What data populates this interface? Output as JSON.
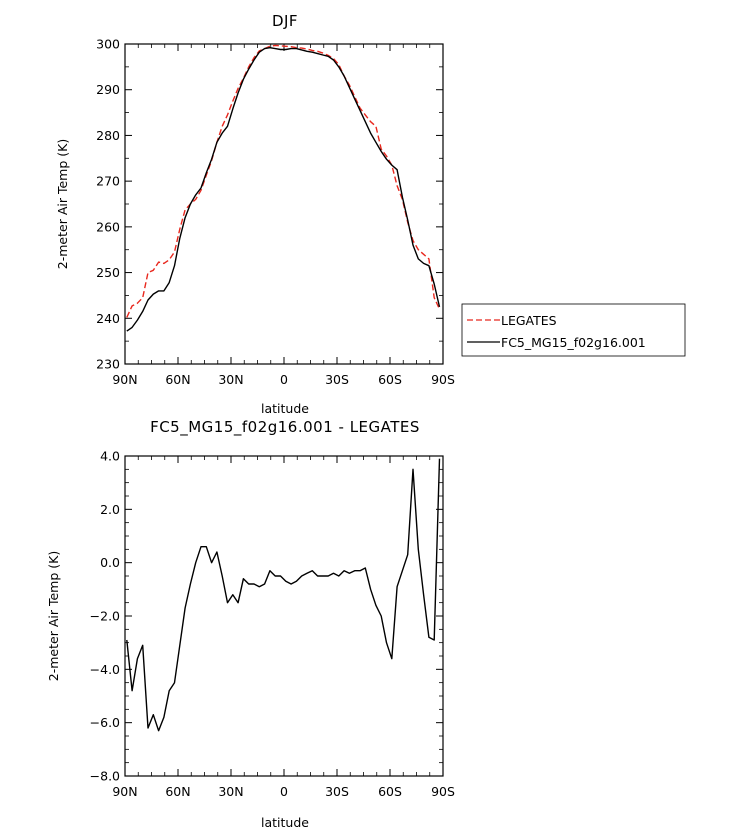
{
  "chart_data": [
    {
      "type": "line",
      "title": "DJF",
      "xlabel": "latitude",
      "ylabel": "2-meter Air Temp (K)",
      "xlim": [
        90,
        -90
      ],
      "ylim": [
        230,
        300
      ],
      "xticks": [
        90,
        60,
        30,
        0,
        -30,
        -60,
        -90
      ],
      "xtick_labels": [
        "90N",
        "60N",
        "30N",
        "0",
        "30S",
        "60S",
        "90S"
      ],
      "yticks": [
        230,
        240,
        250,
        260,
        270,
        280,
        290,
        300
      ],
      "ytick_labels": [
        "230",
        "240",
        "250",
        "260",
        "270",
        "280",
        "290",
        "300"
      ],
      "legend_position": "outside-right",
      "series": [
        {
          "name": "LEGATES",
          "color": "#e8281e",
          "dash": "dashed",
          "x": [
            89,
            86,
            83,
            80,
            77,
            74,
            71,
            68,
            65,
            62,
            59,
            56,
            53,
            50,
            47,
            44,
            41,
            38,
            35,
            32,
            29,
            26,
            23,
            20,
            17,
            14,
            11,
            8,
            5,
            2,
            -1,
            -4,
            -7,
            -10,
            -13,
            -16,
            -19,
            -22,
            -25,
            -28,
            -31,
            -34,
            -37,
            -40,
            -43,
            -46,
            -49,
            -52,
            -55,
            -58,
            -61,
            -64,
            -67,
            -70,
            -73,
            -76,
            -79,
            -82,
            -85,
            -88
          ],
          "y": [
            240.2,
            242.7,
            243.3,
            244.5,
            250.0,
            250.5,
            252.3,
            252.0,
            252.8,
            254.5,
            259.5,
            263.7,
            265.0,
            266.0,
            268.0,
            271.3,
            274.5,
            278.5,
            282.0,
            284.5,
            287.5,
            290.3,
            292.5,
            295.0,
            297.0,
            298.5,
            299.0,
            299.5,
            299.7,
            299.6,
            299.5,
            299.4,
            299.2,
            299.1,
            298.9,
            298.6,
            298.4,
            298.0,
            297.5,
            296.8,
            295.5,
            293.0,
            291.0,
            288.5,
            286.0,
            284.5,
            283.0,
            282.0,
            277.0,
            275.5,
            273.5,
            269.0,
            266.0,
            261.0,
            257.0,
            255.0,
            254.0,
            253.0,
            244.5,
            242.0
          ]
        },
        {
          "name": "FC5_MG15_f02g16.001",
          "color": "#000000",
          "dash": "solid",
          "x": [
            89,
            86,
            83,
            80,
            77,
            74,
            71,
            68,
            65,
            62,
            59,
            56,
            53,
            50,
            47,
            44,
            41,
            38,
            35,
            32,
            29,
            26,
            23,
            20,
            17,
            14,
            11,
            8,
            5,
            2,
            -1,
            -4,
            -7,
            -10,
            -13,
            -16,
            -19,
            -22,
            -25,
            -28,
            -31,
            -34,
            -37,
            -40,
            -43,
            -46,
            -49,
            -52,
            -55,
            -58,
            -61,
            -64,
            -67,
            -70,
            -73,
            -76,
            -79,
            -82,
            -85,
            -88
          ],
          "y": [
            237.2,
            238.0,
            239.6,
            241.5,
            244.0,
            245.3,
            246.0,
            246.0,
            247.8,
            251.5,
            257.5,
            262.0,
            265.0,
            267.0,
            268.5,
            271.8,
            274.8,
            278.5,
            280.5,
            282.0,
            285.8,
            289.3,
            292.3,
            294.5,
            296.5,
            298.2,
            299.0,
            299.2,
            299.0,
            298.8,
            298.8,
            299.0,
            299.0,
            298.7,
            298.4,
            298.2,
            297.9,
            297.6,
            297.3,
            296.5,
            295.0,
            293.0,
            290.5,
            288.0,
            285.5,
            283.0,
            280.5,
            278.5,
            276.5,
            274.8,
            273.5,
            272.5,
            266.5,
            261.5,
            256.0,
            253.0,
            252.0,
            251.5,
            247.5,
            242.5
          ]
        }
      ]
    },
    {
      "type": "line",
      "title": "FC5_MG15_f02g16.001 - LEGATES",
      "xlabel": "latitude",
      "ylabel": "2-meter Air Temp (K)",
      "xlim": [
        90,
        -90
      ],
      "ylim": [
        -8,
        4
      ],
      "xticks": [
        90,
        60,
        30,
        0,
        -30,
        -60,
        -90
      ],
      "xtick_labels": [
        "90N",
        "60N",
        "30N",
        "0",
        "30S",
        "60S",
        "90S"
      ],
      "yticks": [
        -8,
        -6,
        -4,
        -2,
        0,
        2,
        4
      ],
      "ytick_labels": [
        "−8.0",
        "−6.0",
        "−4.0",
        "−2.0",
        "0.0",
        "2.0",
        "4.0"
      ],
      "series": [
        {
          "color": "#000000",
          "dash": "solid",
          "x": [
            89,
            86,
            83,
            80,
            77,
            74,
            71,
            68,
            65,
            62,
            59,
            56,
            53,
            50,
            47,
            44,
            41,
            38,
            35,
            32,
            29,
            26,
            23,
            20,
            17,
            14,
            11,
            8,
            5,
            2,
            -1,
            -4,
            -7,
            -10,
            -13,
            -16,
            -19,
            -22,
            -25,
            -28,
            -31,
            -34,
            -37,
            -40,
            -43,
            -46,
            -49,
            -52,
            -55,
            -58,
            -61,
            -64,
            -67,
            -70,
            -73,
            -76,
            -79,
            -82,
            -85,
            -88
          ],
          "y": [
            -2.9,
            -4.8,
            -3.6,
            -3.1,
            -6.2,
            -5.7,
            -6.3,
            -5.8,
            -4.8,
            -4.5,
            -3.1,
            -1.7,
            -0.8,
            0.0,
            0.6,
            0.6,
            0.0,
            0.4,
            -0.5,
            -1.5,
            -1.2,
            -1.5,
            -0.6,
            -0.8,
            -0.8,
            -0.9,
            -0.8,
            -0.3,
            -0.5,
            -0.5,
            -0.7,
            -0.8,
            -0.7,
            -0.5,
            -0.4,
            -0.3,
            -0.5,
            -0.5,
            -0.5,
            -0.4,
            -0.5,
            -0.3,
            -0.4,
            -0.3,
            -0.3,
            -0.2,
            -1.0,
            -1.6,
            -2.0,
            -3.0,
            -3.6,
            -0.9,
            -0.3,
            0.3,
            3.5,
            0.5,
            -1.2,
            -2.8,
            -2.9,
            3.9
          ]
        }
      ]
    }
  ],
  "legend": {
    "items": [
      {
        "label": "LEGATES"
      },
      {
        "label": "FC5_MG15_f02g16.001"
      }
    ]
  }
}
